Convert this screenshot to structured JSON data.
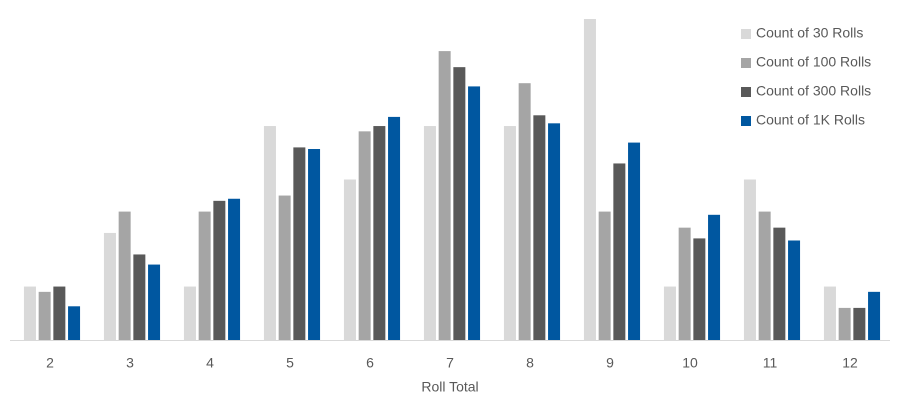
{
  "chart_data": {
    "type": "bar",
    "x_label": "Roll Total",
    "categories": [
      "2",
      "3",
      "4",
      "5",
      "6",
      "7",
      "8",
      "9",
      "10",
      "11",
      "12"
    ],
    "series": [
      {
        "name": "Count of 30 Rolls",
        "color": "#d9d9d9",
        "values": [
          3.33,
          6.67,
          3.33,
          13.33,
          10,
          13.33,
          13.33,
          20,
          3.33,
          10,
          3.33
        ]
      },
      {
        "name": "Count of 100 Rolls",
        "color": "#a5a5a5",
        "values": [
          3,
          8,
          8,
          9,
          13,
          18,
          16,
          8,
          7,
          8,
          2
        ]
      },
      {
        "name": "Count of 300 Rolls",
        "color": "#595959",
        "values": [
          3.33,
          5.33,
          8.67,
          12,
          13.33,
          17,
          14,
          11,
          6.33,
          7,
          2
        ]
      },
      {
        "name": "Count of 1K Rolls",
        "color": "#0057a0",
        "values": [
          2.1,
          4.7,
          8.8,
          11.9,
          13.9,
          15.8,
          13.5,
          12.3,
          7.8,
          6.2,
          3.0
        ]
      }
    ],
    "ylim": [
      0,
      20
    ],
    "legend": "top-right"
  }
}
